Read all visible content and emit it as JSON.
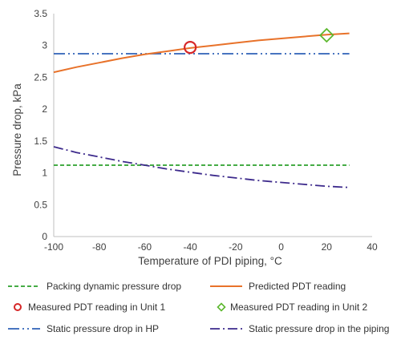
{
  "chart_data": {
    "type": "line",
    "title": "",
    "xlabel": "Temperature of PDI piping, °C",
    "ylabel": "Pressure drop, kPa",
    "xlim": [
      -100,
      40
    ],
    "ylim": [
      0,
      3.5
    ],
    "xticks": [
      -100,
      -80,
      -60,
      -40,
      -20,
      0,
      20,
      40
    ],
    "yticks": [
      0,
      0.5,
      1,
      1.5,
      2,
      2.5,
      3,
      3.5
    ],
    "xtick_labels": [
      "-100",
      "-80",
      "-60",
      "-40",
      "-20",
      "0",
      "20",
      "40"
    ],
    "ytick_labels": [
      "0",
      "0.5",
      "1",
      "1.5",
      "2",
      "2.5",
      "3",
      "3.5"
    ],
    "grid": false,
    "legend_position": "bottom",
    "series": [
      {
        "name": "Packing dynamic pressure drop",
        "kind": "line",
        "style": "dashed",
        "color": "#2ca02c",
        "x": [
          -100,
          30
        ],
        "y": [
          1.12,
          1.12
        ]
      },
      {
        "name": "Predicted PDT reading",
        "kind": "line",
        "style": "solid",
        "color": "#e8722a",
        "x": [
          -100,
          -90,
          -80,
          -70,
          -60,
          -50,
          -40,
          -30,
          -20,
          -10,
          0,
          10,
          20,
          30
        ],
        "y": [
          2.58,
          2.66,
          2.73,
          2.8,
          2.86,
          2.91,
          2.96,
          3.0,
          3.04,
          3.08,
          3.11,
          3.14,
          3.17,
          3.19
        ]
      },
      {
        "name": "Measured PDT reading in Unit 1",
        "kind": "marker",
        "marker": "circle",
        "color": "#d62728",
        "x": [
          -40
        ],
        "y": [
          2.97
        ]
      },
      {
        "name": "Measured PDT reading in Unit 2",
        "kind": "marker",
        "marker": "diamond",
        "color": "#5cb82e",
        "x": [
          20
        ],
        "y": [
          3.16
        ]
      },
      {
        "name": "Static pressure drop in HP",
        "kind": "line",
        "style": "dash-dot-dot",
        "color": "#2e62b8",
        "x": [
          -100,
          30
        ],
        "y": [
          2.87,
          2.87
        ]
      },
      {
        "name": "Static pressure drop in the piping",
        "kind": "line",
        "style": "dash-dot",
        "color": "#3d2a8c",
        "x": [
          -100,
          -90,
          -80,
          -70,
          -60,
          -50,
          -40,
          -30,
          -20,
          -10,
          0,
          10,
          20,
          30
        ],
        "y": [
          1.41,
          1.32,
          1.25,
          1.18,
          1.12,
          1.06,
          1.01,
          0.96,
          0.92,
          0.88,
          0.85,
          0.82,
          0.79,
          0.77
        ]
      }
    ]
  }
}
